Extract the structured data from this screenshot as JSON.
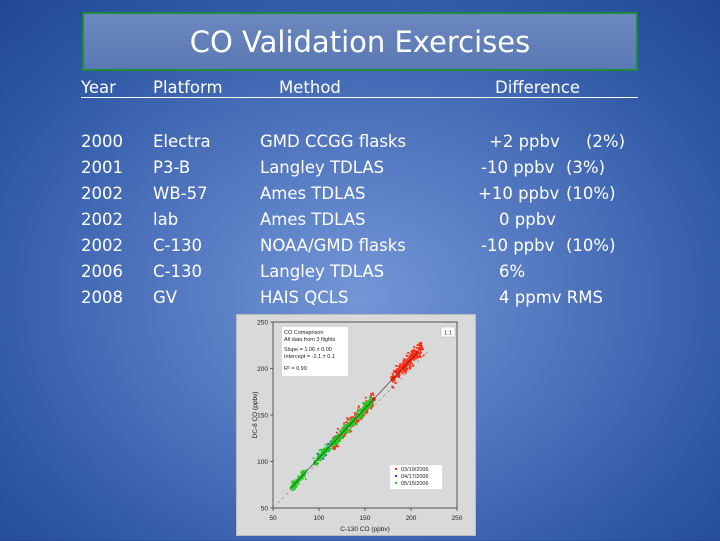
{
  "title": "CO Validation Exercises",
  "table": {
    "headers": [
      "Year",
      "Platform",
      "Method",
      "Difference"
    ],
    "rows": [
      {
        "year": "2000",
        "platform": "Electra",
        "method": "GMD CCGG flasks",
        "diff": "+2 ppbv",
        "pct": "(2%)"
      },
      {
        "year": "2001",
        "platform": "P3-B",
        "method": "Langley TDLAS",
        "diff": "-10 ppbv",
        "pct": "(3%)"
      },
      {
        "year": "2002",
        "platform": "WB-57",
        "method": "Ames TDLAS",
        "diff": "+10 ppbv",
        "pct": "(10%)"
      },
      {
        "year": "2002",
        "platform": "lab",
        "method": "Ames TDLAS",
        "diff": "0 ppbv",
        "pct": ""
      },
      {
        "year": "2002",
        "platform": "C-130",
        "method": "NOAA/GMD flasks",
        "diff": "-10 ppbv",
        "pct": "(10%)"
      },
      {
        "year": "2006",
        "platform": "C-130",
        "method": "Langley TDLAS",
        "diff": "6%",
        "pct": ""
      },
      {
        "year": "2008",
        "platform": "GV",
        "method": "HAIS QCLS",
        "diff": "4 ppmv RMS",
        "pct": ""
      }
    ]
  },
  "chart_data": {
    "type": "scatter",
    "xlabel": "C-130 CO  (ppbv)",
    "ylabel": "DC-8 CO  (ppbv)",
    "xlim": [
      50,
      250
    ],
    "ylim": [
      50,
      250
    ],
    "xticks": [
      "50",
      "100",
      "150",
      "200",
      "250"
    ],
    "yticks": [
      "50",
      "100",
      "150",
      "200",
      "250"
    ],
    "annotation": [
      "CO Comaprison",
      "All data from 3 flights",
      "Slope = 1.06 ± 0.00",
      "Intercept = -2.1 ± 0.1",
      "R² = 0.99"
    ],
    "one_to_one_label": "1:1",
    "fit": {
      "slope": 1.06,
      "intercept": -2.1
    },
    "legend_position": "bottom-right",
    "series": [
      {
        "name": "03/19/2006",
        "color": "#ff2a10",
        "clusters": [
          {
            "x": [
              180,
              212
            ],
            "n": 260
          },
          {
            "x": [
              115,
              160
            ],
            "n": 220
          }
        ]
      },
      {
        "name": "04/17/2006",
        "color": "#1a3cff",
        "clusters": [
          {
            "x": [
              98,
              118
            ],
            "n": 30
          }
        ]
      },
      {
        "name": "05/15/2006",
        "color": "#22cc22",
        "clusters": [
          {
            "x": [
              70,
              85
            ],
            "n": 90
          },
          {
            "x": [
              95,
              158
            ],
            "n": 420
          }
        ]
      }
    ]
  }
}
